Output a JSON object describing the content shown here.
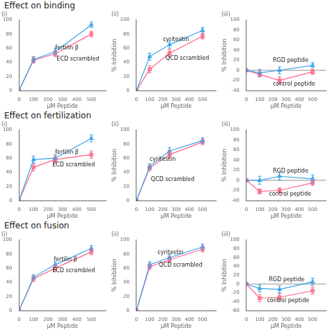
{
  "chart_data": [
    {
      "type": "line",
      "title": "Effect on binding",
      "subtitle": "(i)",
      "xlabel": "μM Peptide",
      "x": [
        0,
        100,
        250,
        500
      ],
      "xlim": [
        0,
        600
      ],
      "xticks": [
        0,
        100,
        200,
        300,
        400,
        500
      ],
      "ylim": [
        0,
        100
      ],
      "yticks": [
        0,
        20,
        40,
        60,
        80,
        100
      ],
      "grid": false,
      "series": [
        {
          "name": "fertilin β",
          "values": [
            0,
            44,
            55,
            93
          ],
          "errors": [
            0,
            4,
            5,
            4
          ],
          "marker": "triangle"
        },
        {
          "name": "ECD scrambled",
          "values": [
            0,
            43,
            52,
            80
          ],
          "errors": [
            0,
            4,
            4,
            4
          ],
          "marker": "square"
        }
      ],
      "annotations": [
        {
          "text": "fertilin β",
          "x": 250,
          "y": 60
        },
        {
          "text": "ECD scrambled",
          "x": 260,
          "y": 44
        }
      ]
    },
    {
      "type": "line",
      "subtitle": "(ii)",
      "xlabel": "μM Peptide",
      "ylabel": "% Inhibition",
      "x": [
        0,
        100,
        250,
        500
      ],
      "xlim": [
        0,
        600
      ],
      "xticks": [
        0,
        100,
        200,
        300,
        400,
        500
      ],
      "ylim": [
        0,
        100
      ],
      "yticks": [
        0,
        20,
        40,
        60,
        80,
        100
      ],
      "grid": false,
      "series": [
        {
          "name": "cyritestin",
          "values": [
            0,
            48,
            65,
            85
          ],
          "errors": [
            0,
            5,
            5,
            4
          ],
          "marker": "triangle"
        },
        {
          "name": "QCD scrambled",
          "values": [
            0,
            30,
            53,
            77
          ],
          "errors": [
            0,
            5,
            5,
            4
          ],
          "marker": "square"
        }
      ],
      "annotations": [
        {
          "text": "cyritestin",
          "x": 200,
          "y": 72
        },
        {
          "text": "QCD scrambled",
          "x": 220,
          "y": 45
        }
      ]
    },
    {
      "type": "line",
      "subtitle": "(iii)",
      "xlabel": "μM Peptide",
      "ylabel": "% Inhibition",
      "x": [
        0,
        100,
        250,
        500
      ],
      "xlim": [
        0,
        600
      ],
      "xticks": [
        0,
        100,
        200,
        300,
        400,
        500
      ],
      "ylim": [
        -40,
        100
      ],
      "yticks": [
        -40,
        -20,
        0,
        20,
        40,
        60,
        80,
        100
      ],
      "grid": false,
      "series": [
        {
          "name": "RGD peptide",
          "values": [
            0,
            -5,
            0,
            10
          ],
          "errors": [
            0,
            7,
            7,
            5
          ],
          "marker": "triangle"
        },
        {
          "name": "control peptide",
          "values": [
            0,
            -8,
            -20,
            -3
          ],
          "errors": [
            0,
            5,
            7,
            5
          ],
          "marker": "square"
        }
      ],
      "annotations": [
        {
          "text": "RGD peptide",
          "x": 200,
          "y": 20
        },
        {
          "text": "control peptide",
          "x": 200,
          "y": -28
        },
        {
          "type": "hline",
          "y": 0
        }
      ]
    },
    {
      "type": "line",
      "title": "Effect on fertilization",
      "subtitle": "(i)",
      "xlabel": "μM Peptide",
      "x": [
        0,
        100,
        250,
        500
      ],
      "xlim": [
        0,
        600
      ],
      "xticks": [
        0,
        100,
        200,
        300,
        400,
        500
      ],
      "ylim": [
        0,
        100
      ],
      "yticks": [
        0,
        20,
        40,
        60,
        80,
        100
      ],
      "grid": false,
      "series": [
        {
          "name": "fertilin β",
          "values": [
            0,
            58,
            60,
            88
          ],
          "errors": [
            0,
            5,
            5,
            5
          ],
          "marker": "triangle"
        },
        {
          "name": "ECD scrambled",
          "values": [
            0,
            47,
            58,
            65
          ],
          "errors": [
            0,
            5,
            5,
            5
          ],
          "marker": "square"
        }
      ],
      "annotations": [
        {
          "text": "fertilin β",
          "x": 250,
          "y": 68
        },
        {
          "text": "ECD scrambled",
          "x": 230,
          "y": 50
        }
      ]
    },
    {
      "type": "line",
      "subtitle": "(ii)",
      "xlabel": "μM Peptide",
      "ylabel": "% Inhibition",
      "x": [
        0,
        100,
        250,
        500
      ],
      "xlim": [
        0,
        600
      ],
      "xticks": [
        0,
        100,
        200,
        300,
        400,
        500
      ],
      "ylim": [
        0,
        100
      ],
      "yticks": [
        0,
        20,
        40,
        60,
        80,
        100
      ],
      "grid": false,
      "series": [
        {
          "name": "cyritestin",
          "values": [
            0,
            48,
            70,
            85
          ],
          "errors": [
            0,
            4,
            5,
            4
          ],
          "marker": "triangle"
        },
        {
          "name": "QCD scrambled",
          "values": [
            0,
            46,
            65,
            83
          ],
          "errors": [
            0,
            4,
            5,
            4
          ],
          "marker": "square"
        }
      ],
      "annotations": [
        {
          "text": "cyritestin",
          "x": 100,
          "y": 58
        },
        {
          "text": "QCD scrambled",
          "x": 110,
          "y": 30
        }
      ]
    },
    {
      "type": "line",
      "subtitle": "(iii)",
      "xlabel": "μM Peptide",
      "ylabel": "% Inhibition",
      "x": [
        0,
        100,
        250,
        500
      ],
      "xlim": [
        0,
        600
      ],
      "xticks": [
        0,
        100,
        200,
        300,
        400,
        500
      ],
      "ylim": [
        -40,
        100
      ],
      "yticks": [
        -40,
        -20,
        0,
        20,
        40,
        60,
        80,
        100
      ],
      "grid": false,
      "series": [
        {
          "name": "RGD peptide",
          "values": [
            0,
            0,
            8,
            3
          ],
          "errors": [
            0,
            8,
            8,
            8
          ],
          "marker": "triangle"
        },
        {
          "name": "control peptide",
          "values": [
            0,
            -22,
            -20,
            -5
          ],
          "errors": [
            0,
            5,
            5,
            5
          ],
          "marker": "square"
        }
      ],
      "annotations": [
        {
          "text": "RGD peptide",
          "x": 200,
          "y": 18
        },
        {
          "text": "control peptide",
          "x": 170,
          "y": -28
        },
        {
          "type": "hline",
          "y": 0
        }
      ]
    },
    {
      "type": "line",
      "title": "Effect on fusion",
      "subtitle": "(i)",
      "xlabel": "μM Peptide",
      "x": [
        0,
        100,
        250,
        500
      ],
      "xlim": [
        0,
        600
      ],
      "xticks": [
        0,
        100,
        200,
        300,
        400,
        500
      ],
      "ylim": [
        0,
        100
      ],
      "yticks": [
        0,
        20,
        40,
        60,
        80,
        100
      ],
      "grid": false,
      "series": [
        {
          "name": "fertilin β",
          "values": [
            0,
            47,
            65,
            88
          ],
          "errors": [
            0,
            4,
            4,
            4
          ],
          "marker": "triangle"
        },
        {
          "name": "ECD scrambled",
          "values": [
            0,
            45,
            60,
            83
          ],
          "errors": [
            0,
            4,
            4,
            4
          ],
          "marker": "square"
        }
      ],
      "annotations": [
        {
          "text": "fertilin β",
          "x": 240,
          "y": 72
        },
        {
          "text": "ECD scrambled",
          "x": 230,
          "y": 56
        }
      ]
    },
    {
      "type": "line",
      "subtitle": "(ii)",
      "xlabel": "μM Peptide",
      "ylabel": "% Inhibition",
      "x": [
        0,
        100,
        250,
        500
      ],
      "xlim": [
        0,
        600
      ],
      "xticks": [
        0,
        100,
        200,
        300,
        400,
        500
      ],
      "ylim": [
        0,
        100
      ],
      "yticks": [
        0,
        20,
        40,
        60,
        80,
        100
      ],
      "grid": false,
      "series": [
        {
          "name": "cyritestin",
          "values": [
            0,
            65,
            75,
            90
          ],
          "errors": [
            0,
            4,
            4,
            4
          ],
          "marker": "triangle"
        },
        {
          "name": "QCD scrambled",
          "values": [
            0,
            62,
            72,
            87
          ],
          "errors": [
            0,
            4,
            4,
            4
          ],
          "marker": "square"
        }
      ],
      "annotations": [
        {
          "text": "cyritestin",
          "x": 160,
          "y": 82
        },
        {
          "text": "QCD scrambled",
          "x": 170,
          "y": 64
        }
      ]
    },
    {
      "type": "line",
      "subtitle": "(iii)",
      "xlabel": "μM Peptide",
      "ylabel": "% Inhibition",
      "x": [
        0,
        100,
        250,
        500
      ],
      "xlim": [
        0,
        600
      ],
      "xticks": [
        0,
        100,
        200,
        300,
        400,
        500
      ],
      "ylim": [
        -60,
        100
      ],
      "yticks": [
        -60,
        -40,
        -20,
        0,
        20,
        40,
        60,
        80,
        100
      ],
      "grid": false,
      "series": [
        {
          "name": "RGD peptide",
          "values": [
            0,
            -10,
            -12,
            5
          ],
          "errors": [
            0,
            8,
            8,
            8
          ],
          "marker": "triangle"
        },
        {
          "name": "control peptide",
          "values": [
            0,
            -32,
            -30,
            -15
          ],
          "errors": [
            0,
            8,
            8,
            8
          ],
          "marker": "square"
        }
      ],
      "annotations": [
        {
          "text": "RGD peptide",
          "x": 170,
          "y": 10
        },
        {
          "text": "control peptide",
          "x": 155,
          "y": -38
        },
        {
          "type": "hline",
          "y": 0
        }
      ]
    }
  ]
}
